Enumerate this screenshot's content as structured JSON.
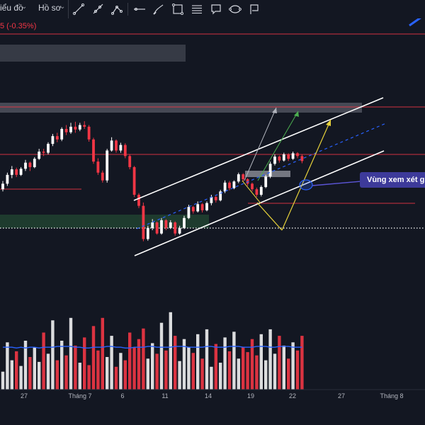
{
  "toolbar": {
    "chart_menu_label": "iểu đồ",
    "profile_menu_label": "Hồ sơ",
    "tools": [
      "trend-line",
      "ray",
      "extended-line",
      "horizontal-line",
      "brush",
      "rectangle",
      "parallel-channel",
      "callout",
      "ellipse",
      "flag"
    ]
  },
  "price_change": "5 (-0.35%)",
  "annotation": {
    "callout_text": "Vùng xem xét gia"
  },
  "colors": {
    "background": "#131722",
    "up": "#ffffff",
    "down": "#f23645",
    "volume_ma": "#2962ff",
    "callout_bg": "#3d3a9a",
    "channel": "#ffffff",
    "midline": "#2962ff",
    "projection_yellow": "#e6d13a",
    "projection_green": "#4caf50",
    "support_zone": "#1e3b2e",
    "dotted_level": "#ffffff",
    "horizontal_levels": "#f23645"
  },
  "chart_data": {
    "type": "candlestick",
    "x_axis_labels": [
      "27",
      "Tháng 7",
      "6",
      "11",
      "14",
      "19",
      "22",
      "27",
      "Tháng 8"
    ],
    "candles": [
      [
        100.0,
        101.5,
        99.6,
        101.0
      ],
      [
        101.0,
        103.0,
        100.6,
        102.6
      ],
      [
        102.6,
        104.2,
        102.0,
        103.6
      ],
      [
        103.6,
        103.9,
        102.2,
        102.6
      ],
      [
        102.6,
        104.0,
        102.4,
        103.7
      ],
      [
        103.7,
        105.3,
        103.3,
        104.8
      ],
      [
        104.8,
        105.0,
        103.3,
        104.0
      ],
      [
        104.0,
        105.8,
        103.8,
        105.5
      ],
      [
        105.5,
        107.3,
        105.3,
        106.8
      ],
      [
        106.8,
        107.3,
        106.0,
        106.6
      ],
      [
        106.6,
        108.5,
        106.3,
        108.2
      ],
      [
        108.2,
        110.0,
        107.8,
        109.6
      ],
      [
        109.6,
        110.2,
        108.5,
        109.0
      ],
      [
        109.0,
        111.2,
        108.7,
        110.9
      ],
      [
        110.9,
        111.6,
        109.8,
        110.3
      ],
      [
        110.3,
        112.0,
        110.0,
        111.3
      ],
      [
        111.3,
        112.2,
        110.2,
        110.8
      ],
      [
        110.8,
        112.0,
        110.5,
        111.6
      ],
      [
        111.6,
        112.3,
        110.9,
        111.3
      ],
      [
        111.3,
        111.6,
        108.6,
        109.0
      ],
      [
        109.0,
        109.3,
        104.6,
        105.0
      ],
      [
        105.0,
        105.6,
        102.6,
        103.0
      ],
      [
        103.0,
        103.4,
        101.2,
        101.6
      ],
      [
        101.6,
        107.3,
        101.2,
        107.0
      ],
      [
        107.0,
        109.4,
        106.8,
        108.8
      ],
      [
        108.8,
        109.0,
        106.6,
        107.0
      ],
      [
        107.0,
        108.4,
        106.6,
        108.0
      ],
      [
        108.0,
        108.3,
        105.6,
        106.0
      ],
      [
        106.0,
        106.3,
        103.6,
        104.0
      ],
      [
        104.0,
        104.2,
        98.6,
        99.0
      ],
      [
        99.0,
        99.3,
        96.6,
        97.0
      ],
      [
        97.0,
        97.6,
        90.6,
        91.0
      ],
      [
        91.0,
        93.4,
        90.7,
        93.0
      ],
      [
        93.0,
        94.6,
        92.6,
        94.0
      ],
      [
        94.0,
        94.2,
        91.8,
        92.0
      ],
      [
        92.0,
        94.8,
        91.8,
        94.4
      ],
      [
        94.4,
        94.6,
        92.6,
        93.0
      ],
      [
        93.0,
        94.4,
        92.8,
        94.0
      ],
      [
        94.0,
        94.2,
        91.6,
        92.0
      ],
      [
        92.0,
        93.4,
        91.8,
        93.0
      ],
      [
        93.0,
        95.2,
        92.8,
        94.8
      ],
      [
        94.8,
        97.2,
        94.6,
        96.8
      ],
      [
        96.8,
        97.0,
        95.6,
        96.0
      ],
      [
        96.0,
        97.8,
        95.8,
        97.3
      ],
      [
        97.3,
        97.5,
        95.8,
        96.2
      ],
      [
        96.2,
        97.8,
        96.0,
        97.5
      ],
      [
        97.5,
        99.0,
        97.1,
        98.6
      ],
      [
        98.6,
        98.8,
        97.6,
        98.0
      ],
      [
        98.0,
        99.9,
        97.8,
        99.6
      ],
      [
        99.6,
        101.6,
        99.3,
        101.2
      ],
      [
        101.2,
        101.5,
        99.8,
        100.2
      ],
      [
        100.2,
        101.6,
        100.0,
        101.4
      ],
      [
        101.4,
        103.0,
        101.1,
        102.7
      ],
      [
        102.7,
        102.9,
        101.4,
        101.8
      ],
      [
        101.8,
        102.0,
        100.6,
        101.0
      ],
      [
        101.0,
        101.2,
        99.6,
        100.0
      ],
      [
        100.0,
        100.3,
        98.6,
        99.0
      ],
      [
        99.0,
        100.7,
        98.7,
        100.4
      ],
      [
        100.4,
        102.6,
        100.2,
        102.3
      ],
      [
        102.3,
        105.0,
        102.0,
        104.6
      ],
      [
        104.6,
        106.3,
        104.3,
        105.9
      ],
      [
        105.9,
        106.1,
        104.8,
        105.2
      ],
      [
        105.2,
        106.6,
        105.0,
        106.3
      ],
      [
        106.3,
        106.5,
        105.1,
        105.5
      ],
      [
        105.5,
        106.8,
        105.3,
        106.5
      ],
      [
        106.5,
        106.7,
        105.6,
        106.0
      ],
      [
        106.0,
        106.3,
        104.7,
        105.1
      ]
    ],
    "volume": [
      22,
      58,
      36,
      47,
      29,
      60,
      40,
      52,
      34,
      70,
      44,
      85,
      36,
      60,
      42,
      88,
      54,
      33,
      64,
      30,
      78,
      48,
      88,
      40,
      66,
      28,
      45,
      36,
      70,
      52,
      62,
      75,
      38,
      57,
      44,
      82,
      48,
      95,
      66,
      35,
      62,
      52,
      45,
      68,
      38,
      74,
      28,
      56,
      33,
      64,
      47,
      71,
      38,
      52,
      46,
      62,
      42,
      68,
      36,
      74,
      44,
      66,
      54,
      38,
      58,
      48,
      66
    ],
    "volume_ma": [
      52,
      52,
      52,
      51,
      52,
      51,
      52,
      52,
      51,
      52,
      52,
      52,
      53,
      53,
      53,
      53,
      52,
      52,
      51,
      51,
      52,
      52,
      52,
      53,
      53,
      52,
      52,
      51,
      51,
      52,
      52,
      52,
      53,
      53,
      52,
      52,
      52,
      52,
      53,
      53,
      53,
      52,
      52,
      52,
      52,
      53,
      53,
      52,
      52,
      52,
      53,
      53,
      53,
      52,
      52,
      52,
      53,
      53,
      53,
      52,
      52,
      53,
      53,
      53,
      52,
      52,
      52
    ],
    "channel": {
      "upper": [
        [
          189,
          283
        ],
        [
          541,
          138
        ]
      ],
      "lower": [
        [
          190,
          361
        ],
        [
          542,
          213
        ]
      ],
      "midline": [
        [
          193,
          323
        ],
        [
          545,
          174
        ]
      ]
    },
    "horizontal_levels": [
      {
        "y": 48,
        "x1": 0,
        "x2": 600
      },
      {
        "y": 151,
        "x1": 0,
        "x2": 600
      },
      {
        "y": 218,
        "x1": 0,
        "x2": 600
      },
      {
        "y": 267,
        "x1": 0,
        "x2": 115
      },
      {
        "y": 287,
        "x1": 350,
        "x2": 586
      }
    ],
    "dotted_level": 322,
    "callout_point": [
      432,
      261
    ]
  }
}
